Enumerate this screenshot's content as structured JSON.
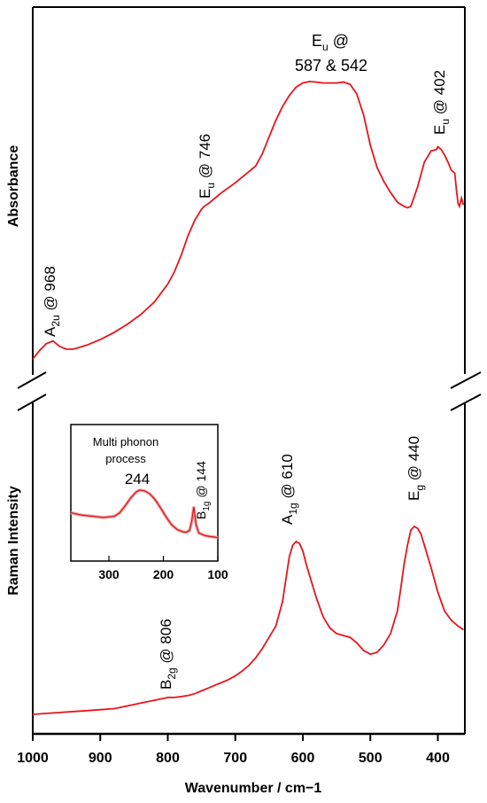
{
  "chart_data": {
    "type": "line",
    "xlabel": "Wavenumber / cm−1",
    "x_ticks": [
      1000,
      900,
      800,
      700,
      600,
      500,
      400
    ],
    "xlim": [
      1000,
      360
    ],
    "x_reversed": true,
    "panels": [
      {
        "name": "top",
        "ylabel": "Absorbance",
        "color": "#e8141b",
        "series": [
          {
            "x": [
              1000,
              990,
              980,
              970,
              960,
              950,
              940,
              920,
              900,
              880,
              860,
              840,
              820,
              800,
              790,
              780,
              770,
              760,
              750,
              746,
              740,
              730,
              720,
              700,
              680,
              670,
              660,
              650,
              640,
              630,
              620,
              610,
              600,
              590,
              580,
              570,
              560,
              550,
              540,
              530,
              520,
              510,
              500,
              490,
              480,
              470,
              460,
              450,
              445,
              440,
              430,
              420,
              410,
              402,
              400,
              395,
              390,
              385,
              380,
              375,
              372,
              370,
              368,
              365,
              362
            ],
            "y": [
              0.0,
              0.03,
              0.055,
              0.065,
              0.045,
              0.035,
              0.035,
              0.05,
              0.07,
              0.095,
              0.125,
              0.16,
              0.205,
              0.27,
              0.315,
              0.375,
              0.445,
              0.5,
              0.54,
              0.55,
              0.56,
              0.58,
              0.6,
              0.635,
              0.675,
              0.695,
              0.74,
              0.8,
              0.86,
              0.91,
              0.95,
              0.98,
              0.995,
              1.0,
              0.998,
              0.995,
              0.995,
              0.995,
              0.998,
              0.99,
              0.955,
              0.88,
              0.77,
              0.69,
              0.64,
              0.6,
              0.565,
              0.55,
              0.545,
              0.55,
              0.62,
              0.71,
              0.75,
              0.755,
              0.765,
              0.755,
              0.735,
              0.71,
              0.68,
              0.67,
              0.6,
              0.56,
              0.55,
              0.58,
              0.555
            ]
          }
        ],
        "annotations": [
          {
            "base": "A",
            "sub": "2u",
            "text": " @ 968",
            "rotated": true
          },
          {
            "base": "E",
            "sub": "u",
            "text": " @ 746",
            "rotated": true
          },
          {
            "base": "E",
            "sub": "u",
            "text": " @",
            "line2": "587 & 542",
            "rotated": false
          },
          {
            "base": "E",
            "sub": "u",
            "text": " @ 402",
            "rotated": true
          }
        ]
      },
      {
        "name": "bottom",
        "ylabel": "Raman Intensity",
        "color": "#e8141b",
        "series": [
          {
            "x": [
              1000,
              980,
              960,
              940,
              920,
              900,
              880,
              860,
              840,
              820,
              806,
              800,
              790,
              780,
              770,
              760,
              750,
              740,
              730,
              720,
              710,
              700,
              690,
              680,
              670,
              660,
              650,
              640,
              630,
              625,
              620,
              615,
              610,
              605,
              600,
              595,
              590,
              580,
              570,
              560,
              550,
              540,
              530,
              520,
              510,
              500,
              490,
              480,
              470,
              460,
              455,
              450,
              445,
              440,
              435,
              430,
              425,
              420,
              410,
              400,
              390,
              380,
              370,
              362
            ],
            "y": [
              0.0,
              0.005,
              0.01,
              0.015,
              0.02,
              0.025,
              0.03,
              0.045,
              0.06,
              0.075,
              0.085,
              0.09,
              0.09,
              0.095,
              0.1,
              0.11,
              0.125,
              0.14,
              0.155,
              0.17,
              0.185,
              0.205,
              0.23,
              0.26,
              0.3,
              0.35,
              0.41,
              0.47,
              0.6,
              0.72,
              0.84,
              0.9,
              0.92,
              0.91,
              0.87,
              0.8,
              0.74,
              0.62,
              0.52,
              0.46,
              0.43,
              0.42,
              0.41,
              0.38,
              0.34,
              0.32,
              0.33,
              0.37,
              0.43,
              0.55,
              0.67,
              0.8,
              0.9,
              0.98,
              1.0,
              0.99,
              0.96,
              0.9,
              0.78,
              0.65,
              0.55,
              0.5,
              0.47,
              0.45
            ]
          }
        ],
        "annotations": [
          {
            "base": "A",
            "sub": "1g",
            "text": " @ 610",
            "rotated": true
          },
          {
            "base": "E",
            "sub": "g",
            "text": " @ 440",
            "rotated": true
          },
          {
            "base": "B",
            "sub": "2g",
            "text": " @ 806",
            "rotated": true
          }
        ]
      }
    ],
    "inset": {
      "type": "line",
      "xlim": [
        370,
        100
      ],
      "x_ticks": [
        300,
        200,
        100
      ],
      "series": [
        {
          "x": [
            370,
            350,
            330,
            310,
            290,
            280,
            270,
            260,
            250,
            244,
            235,
            225,
            215,
            205,
            195,
            185,
            175,
            165,
            158,
            152,
            148,
            144,
            140,
            135,
            125,
            115,
            105,
            100
          ],
          "y": [
            0.5,
            0.46,
            0.44,
            0.42,
            0.44,
            0.5,
            0.62,
            0.75,
            0.85,
            0.88,
            0.87,
            0.82,
            0.72,
            0.58,
            0.43,
            0.3,
            0.22,
            0.18,
            0.17,
            0.2,
            0.35,
            0.6,
            0.3,
            0.16,
            0.12,
            0.1,
            0.09,
            0.08
          ]
        }
      ],
      "annotations": [
        {
          "text": "Multi phonon",
          "line2": "process"
        },
        {
          "text": "244"
        },
        {
          "base": "B",
          "sub": "1g",
          "text": " @ 144",
          "rotated": true
        }
      ]
    }
  }
}
